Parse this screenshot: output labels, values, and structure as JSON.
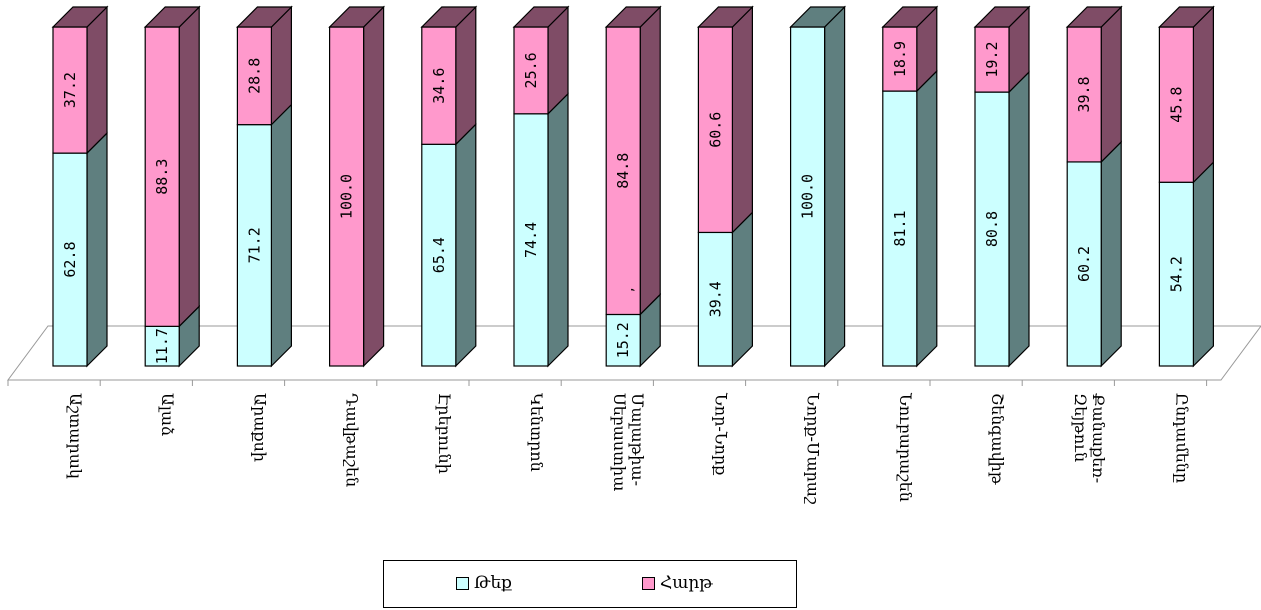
{
  "chart_data": {
    "type": "bar",
    "stacked": true,
    "percent": true,
    "three_d": true,
    "categories": [
      "Աշտարակ",
      "Ալաձ",
      "Արաքսի",
      "Դավթաշեն",
      "Էրեբունի",
      "Կենտրոն",
      "Մալաթիա-Սեբաստիա",
      "Նոր-Նորք",
      "Նորք-Մարաշ",
      "Նուբարաշեն",
      "Շենգավիթ",
      "Քանաքեռ-Զեյթուն",
      "Ընդամենը"
    ],
    "series": [
      {
        "name": "Թեք",
        "color": "#ccffff",
        "side_color": "#5f7f7f",
        "values": [
          62.8,
          11.7,
          71.2,
          0,
          65.4,
          74.4,
          15.2,
          39.4,
          100.0,
          81.1,
          80.8,
          60.2,
          54.2
        ],
        "labels": [
          "62.8",
          "11.7",
          "71.2",
          "",
          "65.4",
          "74.4",
          "15.2",
          "39.4",
          "100.0",
          "81.1",
          "80.8",
          "60.2",
          "54.2"
        ]
      },
      {
        "name": "Հարթ",
        "color": "#ff99cc",
        "side_color": "#7f4c66",
        "values": [
          37.2,
          88.3,
          28.8,
          100.0,
          34.6,
          25.6,
          84.8,
          60.6,
          0,
          18.9,
          19.2,
          39.8,
          45.8
        ],
        "labels": [
          "37.2",
          "88.3",
          "28.8",
          "100.0",
          "34.6",
          "25.6",
          "84.8",
          "60.6",
          "",
          "18.9",
          "19.2",
          "39.8",
          "45.8"
        ]
      }
    ],
    "stray_mark": ",",
    "ylim": [
      0,
      100
    ],
    "legend_position": "bottom"
  }
}
